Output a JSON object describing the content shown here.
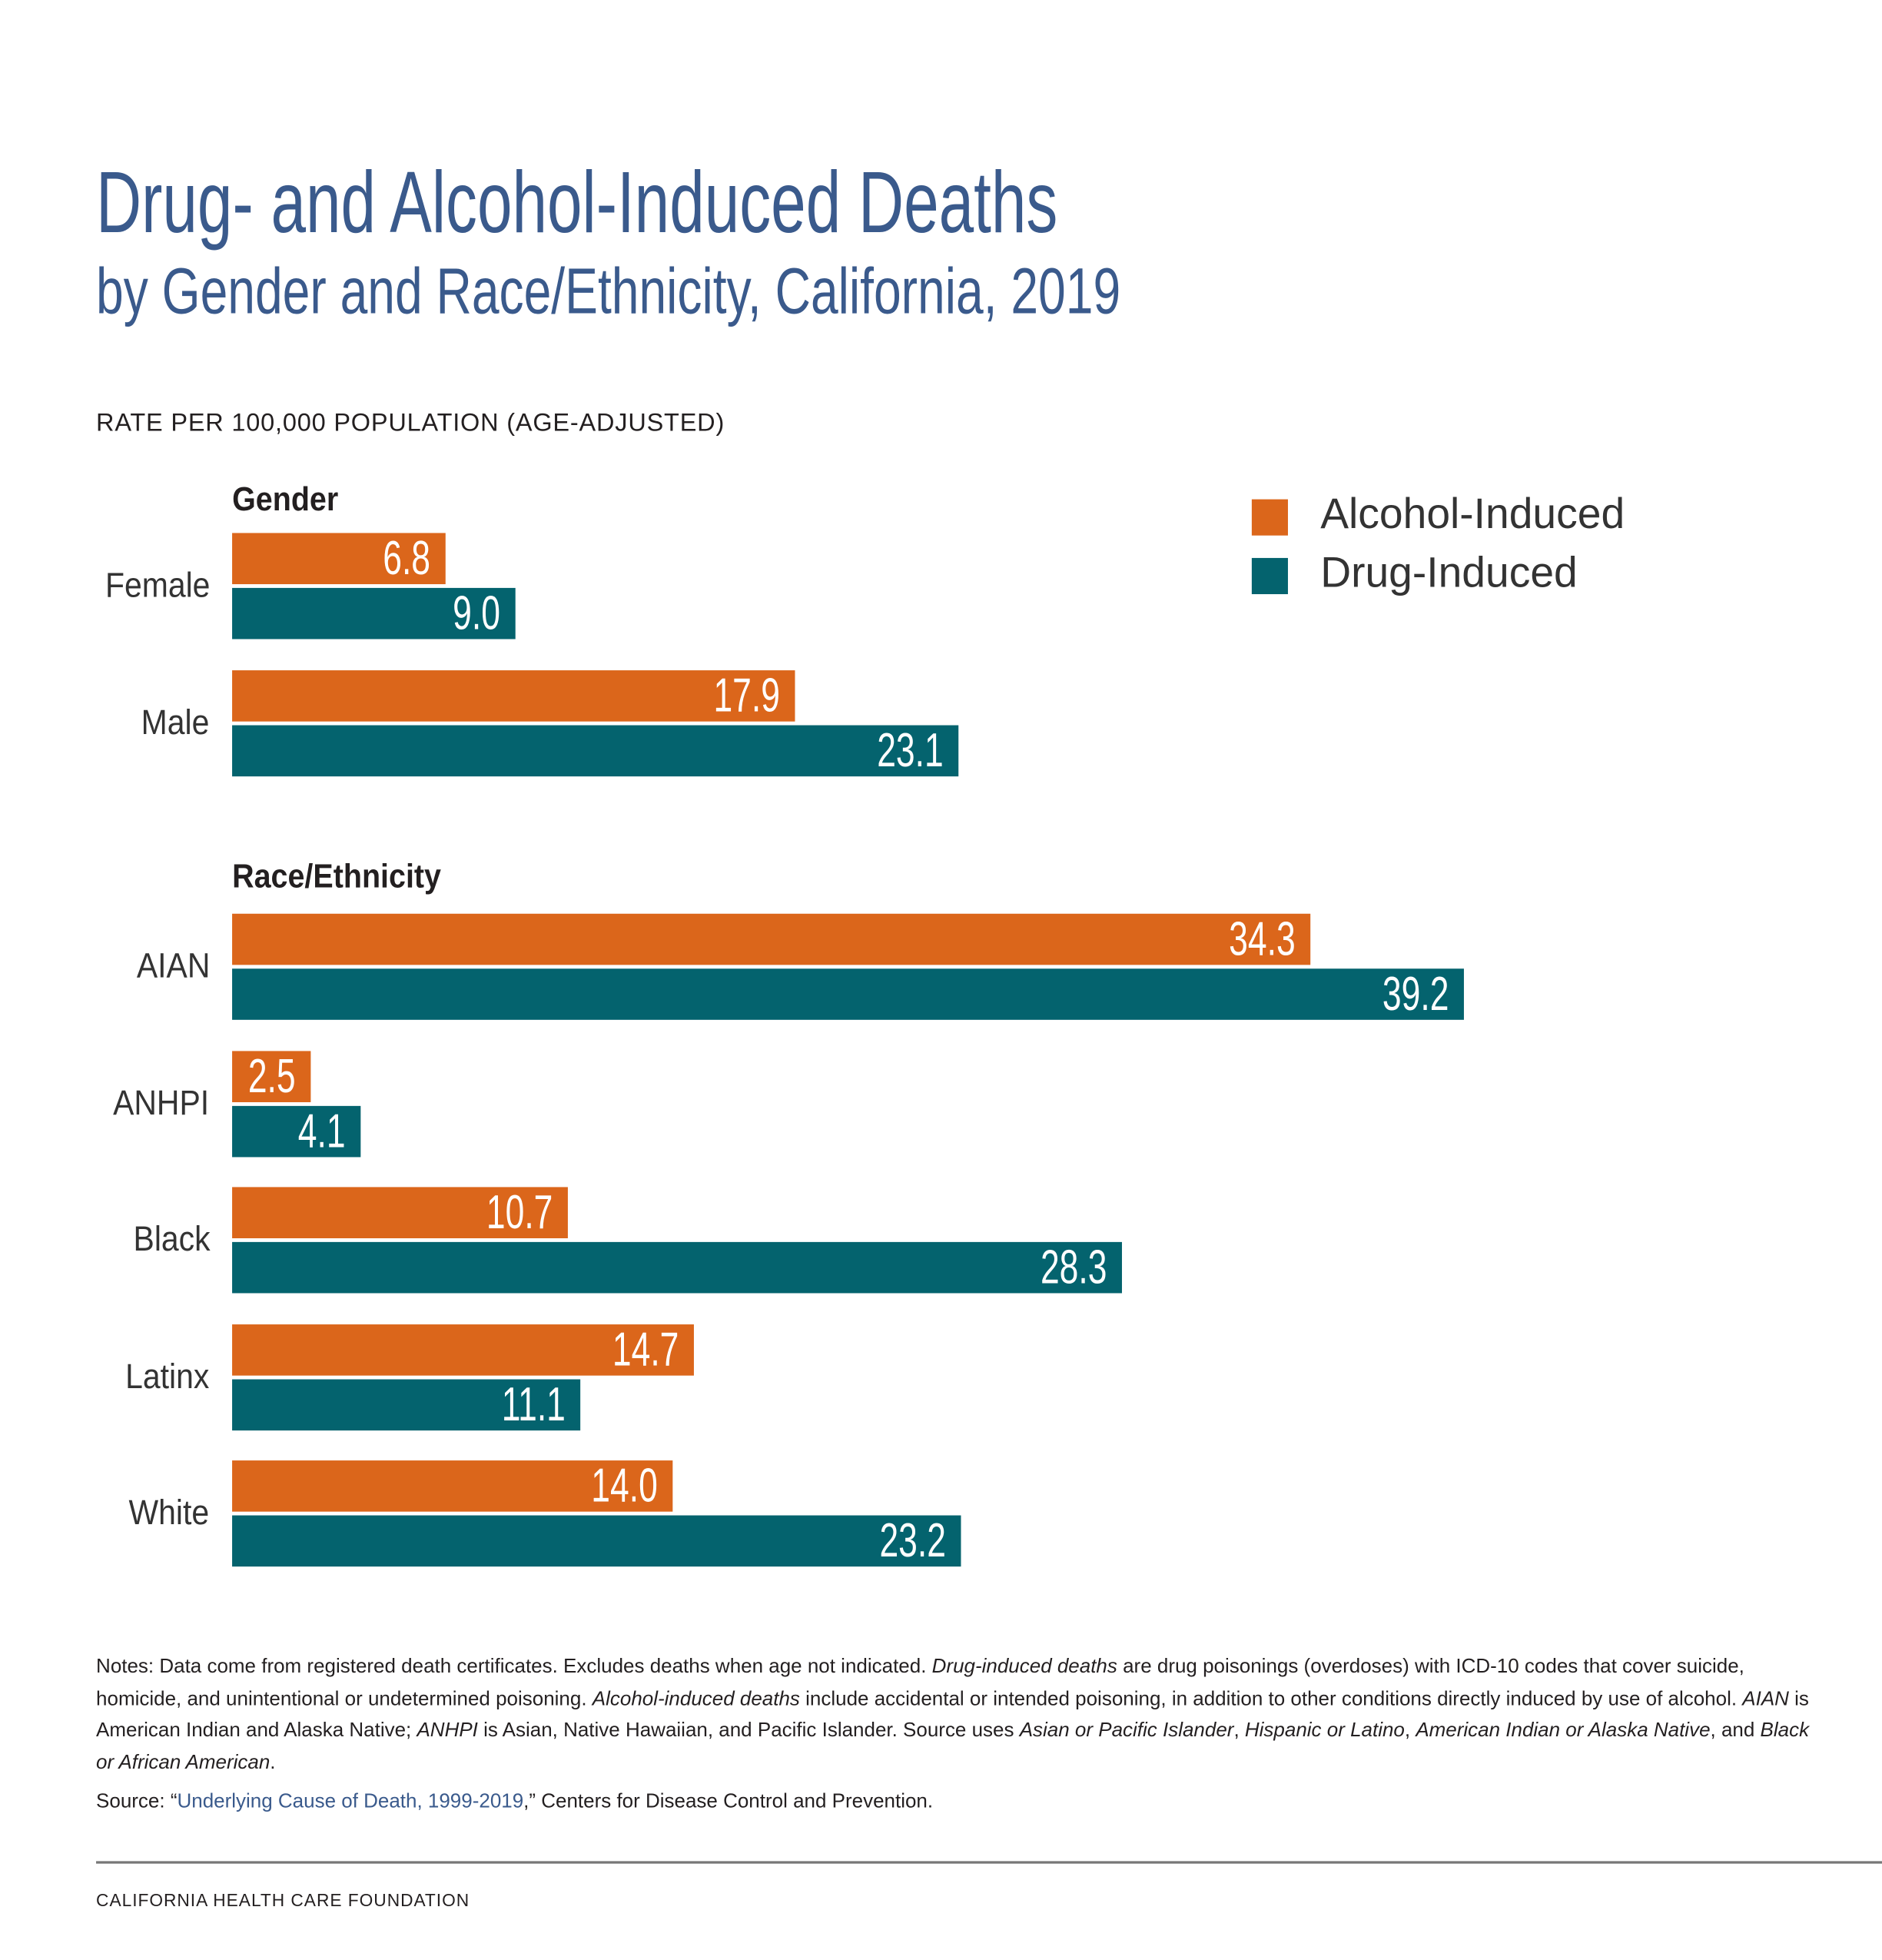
{
  "title": "Drug- and Alcohol-Induced Deaths",
  "subtitle": "by Gender and Race/Ethnicity, California, 2019",
  "colors": {
    "alcohol": "#DB661B",
    "drug": "#04636E",
    "title": "#3A5A8C"
  },
  "chart_data": {
    "type": "bar",
    "orientation": "horizontal",
    "ylabel": "RATE PER 100,000 POPULATION (AGE-ADJUSTED)",
    "legend": {
      "placement": "top-right",
      "entries": [
        "Alcohol-Induced",
        "Drug-Induced"
      ]
    },
    "xlim": [
      0,
      39.2
    ],
    "grid": false,
    "groups": [
      {
        "label": "Gender",
        "categories": [
          {
            "name": "Female",
            "alcohol": 6.8,
            "drug": 9.0,
            "alcohol_label": "6.8",
            "drug_label": "9.0"
          },
          {
            "name": "Male",
            "alcohol": 17.9,
            "drug": 23.1,
            "alcohol_label": "17.9",
            "drug_label": "23.1"
          }
        ]
      },
      {
        "label": "Race/Ethnicity",
        "categories": [
          {
            "name": "AIAN",
            "alcohol": 34.3,
            "drug": 39.2,
            "alcohol_label": "34.3",
            "drug_label": "39.2"
          },
          {
            "name": "ANHPI",
            "alcohol": 2.5,
            "drug": 4.1,
            "alcohol_label": "2.5",
            "drug_label": "4.1"
          },
          {
            "name": "Black",
            "alcohol": 10.7,
            "drug": 28.3,
            "alcohol_label": "10.7",
            "drug_label": "28.3"
          },
          {
            "name": "Latinx",
            "alcohol": 14.7,
            "drug": 11.1,
            "alcohol_label": "14.7",
            "drug_label": "11.1"
          },
          {
            "name": "White",
            "alcohol": 14.0,
            "drug": 23.2,
            "alcohol_label": "14.0",
            "drug_label": "23.2"
          }
        ]
      }
    ]
  },
  "notes": {
    "t1": "Notes: Data come from registered death certificates. Excludes deaths when age not indicated. ",
    "i1": "Drug-induced deaths",
    "t2": " are drug poisonings (overdoses) with ICD-10 codes that cover suicide, homicide, and unintentional or undetermined poisoning. ",
    "i2": "Alcohol-induced deaths",
    "t3": " include accidental or intended poisoning, in addition to other conditions directly induced by use of alcohol. ",
    "i3": "AIAN",
    "t4": " is American Indian and Alaska Native; ",
    "i4": "ANHPI",
    "t5": " is Asian, Native Hawaiian, and Pacific Islander. Source uses ",
    "i5": "Asian or Pacific Islander",
    "t6": ", ",
    "i6": "Hispanic or Latino",
    "t7": ", ",
    "i7": "American Indian or Alaska Native",
    "t8": ", and ",
    "i8": "Black or African American",
    "t9": "."
  },
  "source": {
    "prefix": "Source: “",
    "link": "Underlying Cause of Death, 1999-2019",
    "suffix": ",” Centers for Disease Control and Prevention."
  },
  "footer": "CALIFORNIA HEALTH CARE FOUNDATION"
}
